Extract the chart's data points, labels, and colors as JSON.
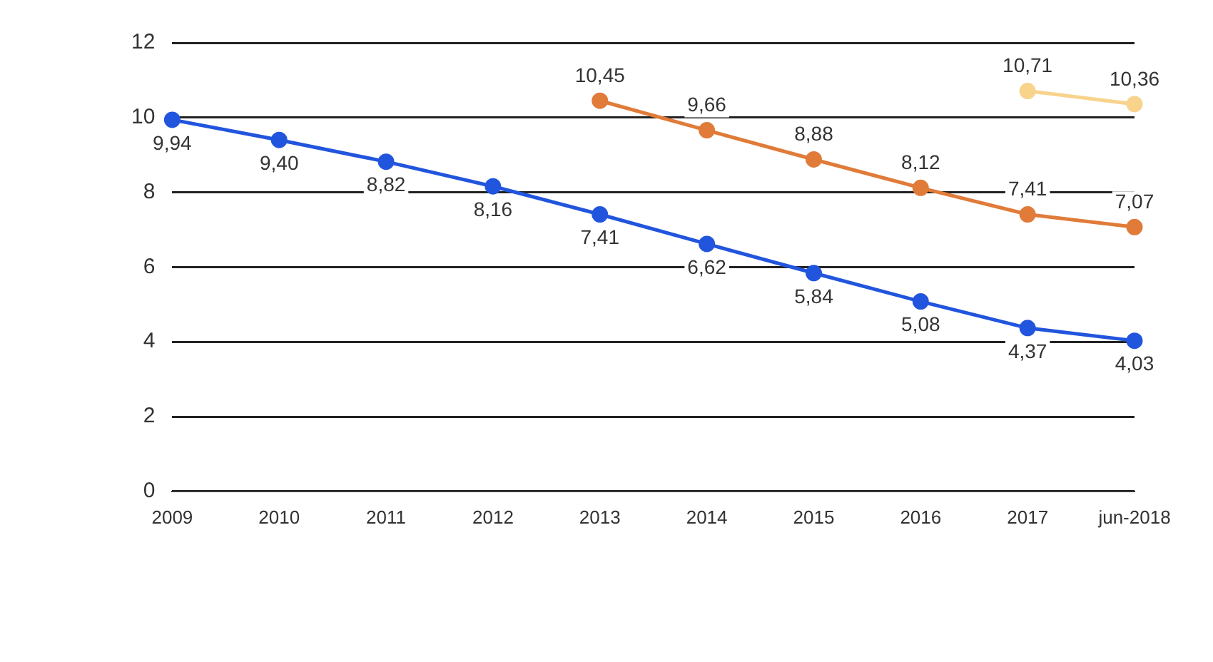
{
  "chart_data": {
    "type": "line",
    "categories": [
      "2009",
      "2010",
      "2011",
      "2012",
      "2013",
      "2014",
      "2015",
      "2016",
      "2017",
      "jun-2018"
    ],
    "series": [
      {
        "color": "#2255dd",
        "values": [
          9.94,
          9.4,
          8.82,
          8.16,
          7.41,
          6.62,
          5.84,
          5.08,
          4.37,
          4.03
        ],
        "value_labels": [
          "9,94",
          "9,40",
          "8,82",
          "8,16",
          "7,41",
          "6,62",
          "5,84",
          "5,08",
          "4,37",
          "4,03"
        ]
      },
      {
        "color": "#e07b39",
        "values": [
          null,
          null,
          null,
          null,
          10.45,
          9.66,
          8.88,
          8.12,
          7.41,
          7.07
        ],
        "value_labels": [
          null,
          null,
          null,
          null,
          "10,45",
          "9,66",
          "8,88",
          "8,12",
          "7,41",
          "7,07"
        ]
      },
      {
        "color": "#f7d38c",
        "values": [
          null,
          null,
          null,
          null,
          null,
          null,
          null,
          null,
          10.71,
          10.36
        ],
        "value_labels": [
          null,
          null,
          null,
          null,
          null,
          null,
          null,
          null,
          "10,71",
          "10,36"
        ]
      }
    ],
    "ylim": [
      0,
      12
    ],
    "yticks": [
      0,
      2,
      4,
      6,
      8,
      10,
      12
    ],
    "grid": "y",
    "marker": "circle",
    "line_style": "solid"
  }
}
